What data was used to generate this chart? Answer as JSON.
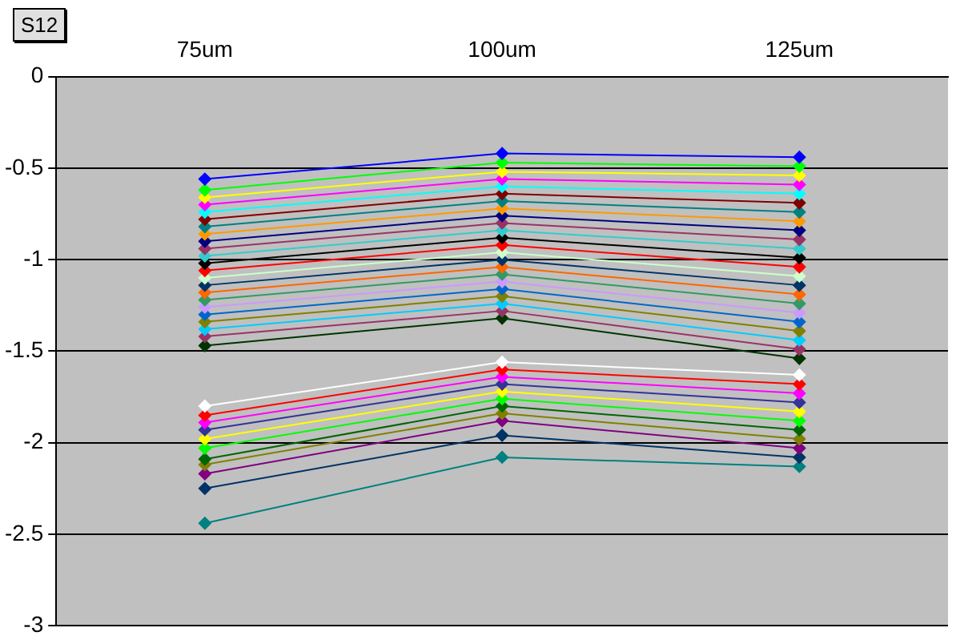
{
  "chart_data": {
    "type": "line",
    "title": "S12",
    "categories": [
      "75um",
      "100um",
      "125um"
    ],
    "ylim": [
      -3,
      0
    ],
    "yticks": [
      -3,
      -2.5,
      -2,
      -1.5,
      -1,
      -0.5,
      0
    ],
    "grid": "y",
    "legend": false,
    "marker": "diamond",
    "line_style": "solid",
    "series": [
      {
        "color": "#0000ff",
        "values": [
          -0.56,
          -0.42,
          -0.44
        ]
      },
      {
        "color": "#00ff00",
        "values": [
          -0.62,
          -0.47,
          -0.49
        ]
      },
      {
        "color": "#ffff00",
        "values": [
          -0.66,
          -0.52,
          -0.54
        ]
      },
      {
        "color": "#ff00ff",
        "values": [
          -0.7,
          -0.56,
          -0.59
        ]
      },
      {
        "color": "#00ffff",
        "values": [
          -0.74,
          -0.6,
          -0.64
        ]
      },
      {
        "color": "#800000",
        "values": [
          -0.78,
          -0.64,
          -0.69
        ]
      },
      {
        "color": "#008080",
        "values": [
          -0.82,
          -0.68,
          -0.74
        ]
      },
      {
        "color": "#ff9900",
        "values": [
          -0.86,
          -0.72,
          -0.79
        ]
      },
      {
        "color": "#000080",
        "values": [
          -0.9,
          -0.76,
          -0.84
        ]
      },
      {
        "color": "#993366",
        "values": [
          -0.94,
          -0.8,
          -0.89
        ]
      },
      {
        "color": "#33cccc",
        "values": [
          -0.98,
          -0.84,
          -0.94
        ]
      },
      {
        "color": "#000000",
        "values": [
          -1.02,
          -0.88,
          -0.99
        ]
      },
      {
        "color": "#ff0000",
        "values": [
          -1.06,
          -0.92,
          -1.04
        ]
      },
      {
        "color": "#ccffcc",
        "values": [
          -1.1,
          -0.96,
          -1.09
        ]
      },
      {
        "color": "#003366",
        "values": [
          -1.14,
          -1.0,
          -1.14
        ]
      },
      {
        "color": "#ff6600",
        "values": [
          -1.18,
          -1.04,
          -1.19
        ]
      },
      {
        "color": "#339966",
        "values": [
          -1.22,
          -1.08,
          -1.24
        ]
      },
      {
        "color": "#cc99ff",
        "values": [
          -1.26,
          -1.12,
          -1.29
        ]
      },
      {
        "color": "#0066cc",
        "values": [
          -1.3,
          -1.16,
          -1.34
        ]
      },
      {
        "color": "#808000",
        "values": [
          -1.34,
          -1.2,
          -1.39
        ]
      },
      {
        "color": "#00ccff",
        "values": [
          -1.38,
          -1.24,
          -1.44
        ]
      },
      {
        "color": "#993366",
        "values": [
          -1.42,
          -1.28,
          -1.49
        ]
      },
      {
        "color": "#003300",
        "values": [
          -1.47,
          -1.32,
          -1.54
        ]
      },
      {
        "color": "#ffffff",
        "values": [
          -1.8,
          -1.56,
          -1.63
        ]
      },
      {
        "color": "#ff0000",
        "values": [
          -1.85,
          -1.6,
          -1.68
        ]
      },
      {
        "color": "#ff00ff",
        "values": [
          -1.89,
          -1.64,
          -1.73
        ]
      },
      {
        "color": "#333399",
        "values": [
          -1.93,
          -1.68,
          -1.78
        ]
      },
      {
        "color": "#ffff00",
        "values": [
          -1.98,
          -1.72,
          -1.83
        ]
      },
      {
        "color": "#00ff00",
        "values": [
          -2.03,
          -1.76,
          -1.88
        ]
      },
      {
        "color": "#006600",
        "values": [
          -2.09,
          -1.8,
          -1.93
        ]
      },
      {
        "color": "#808000",
        "values": [
          -2.12,
          -1.84,
          -1.98
        ]
      },
      {
        "color": "#800080",
        "values": [
          -2.17,
          -1.88,
          -2.03
        ]
      },
      {
        "color": "#003366",
        "values": [
          -2.25,
          -1.96,
          -2.08
        ]
      },
      {
        "color": "#008080",
        "values": [
          -2.44,
          -2.08,
          -2.13
        ]
      }
    ]
  }
}
